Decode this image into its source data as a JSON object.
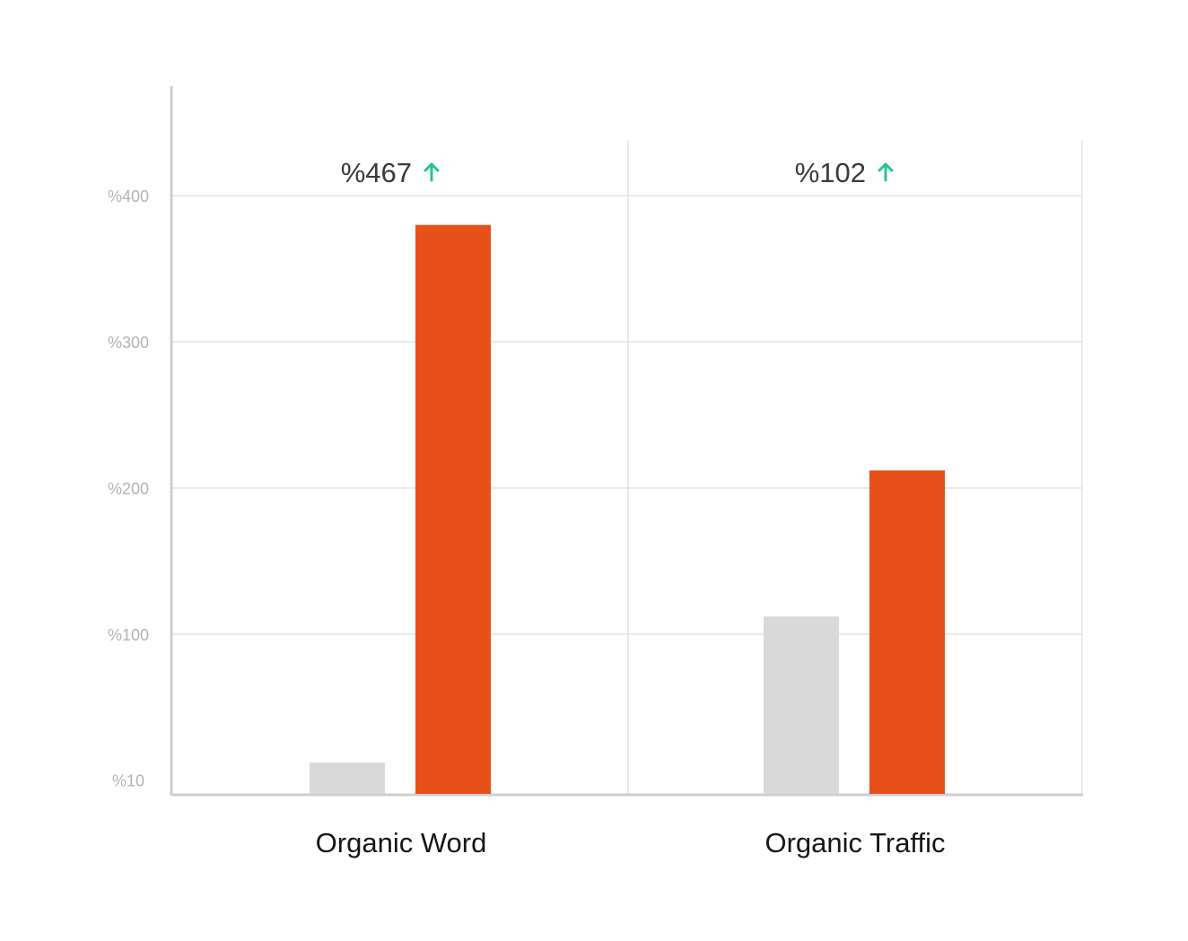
{
  "chart_data": {
    "type": "bar",
    "categories": [
      "Organic Word",
      "Organic Traffic"
    ],
    "series": [
      {
        "values": [
          22,
          122
        ],
        "color": "#d9d9d9"
      },
      {
        "values": [
          390,
          222
        ],
        "color": "#e8501a"
      }
    ],
    "growth_labels": [
      "%467",
      "%102"
    ],
    "growth_icon": "arrow-up-icon",
    "growth_color": "#25c490",
    "y_ticks": [
      {
        "value": 10,
        "label": "%10"
      },
      {
        "value": 110,
        "label": "%100"
      },
      {
        "value": 210,
        "label": "%200"
      },
      {
        "value": 310,
        "label": "%300"
      },
      {
        "value": 410,
        "label": "%400"
      }
    ],
    "ylim": [
      0,
      485
    ],
    "grid": true,
    "title": "",
    "xlabel": "",
    "ylabel": ""
  }
}
